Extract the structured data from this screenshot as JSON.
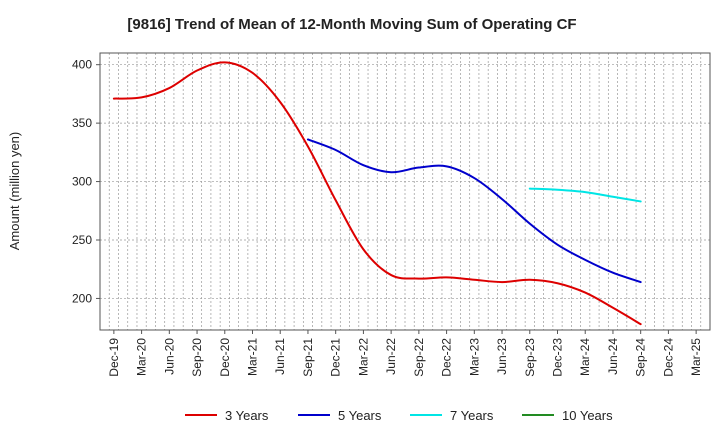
{
  "chart_data": {
    "type": "line",
    "title": "[9816]  Trend of Mean of 12-Month Moving Sum of Operating CF",
    "xlabel": "",
    "ylabel": "Amount (million yen)",
    "ylim": [
      173,
      410
    ],
    "yticks": [
      200,
      250,
      300,
      350,
      400
    ],
    "categories": [
      "Dec-19",
      "Mar-20",
      "Jun-20",
      "Sep-20",
      "Dec-20",
      "Mar-21",
      "Jun-21",
      "Sep-21",
      "Dec-21",
      "Mar-22",
      "Jun-22",
      "Sep-22",
      "Dec-22",
      "Mar-23",
      "Jun-23",
      "Sep-23",
      "Dec-23",
      "Mar-24",
      "Jun-24",
      "Sep-24",
      "Dec-24",
      "Mar-25"
    ],
    "grid": true,
    "legend_position": "bottom",
    "series": [
      {
        "name": "3 Years",
        "color": "#dd0000",
        "values": [
          371,
          372,
          380,
          395,
          402,
          393,
          368,
          330,
          284,
          242,
          220,
          217,
          218,
          216,
          214,
          216,
          213,
          205,
          192,
          178,
          null,
          null
        ]
      },
      {
        "name": "5 Years",
        "color": "#0000cc",
        "values": [
          null,
          null,
          null,
          null,
          null,
          null,
          null,
          336,
          327,
          314,
          308,
          312,
          313,
          303,
          285,
          264,
          246,
          233,
          222,
          214,
          null,
          null
        ]
      },
      {
        "name": "7 Years",
        "color": "#00e5e5",
        "values": [
          null,
          null,
          null,
          null,
          null,
          null,
          null,
          null,
          null,
          null,
          null,
          null,
          null,
          null,
          null,
          294,
          293,
          291,
          287,
          283,
          null,
          null
        ]
      },
      {
        "name": "10 Years",
        "color": "#228b22",
        "values": [
          null,
          null,
          null,
          null,
          null,
          null,
          null,
          null,
          null,
          null,
          null,
          null,
          null,
          null,
          null,
          null,
          null,
          null,
          null,
          null,
          null,
          null
        ]
      }
    ]
  }
}
